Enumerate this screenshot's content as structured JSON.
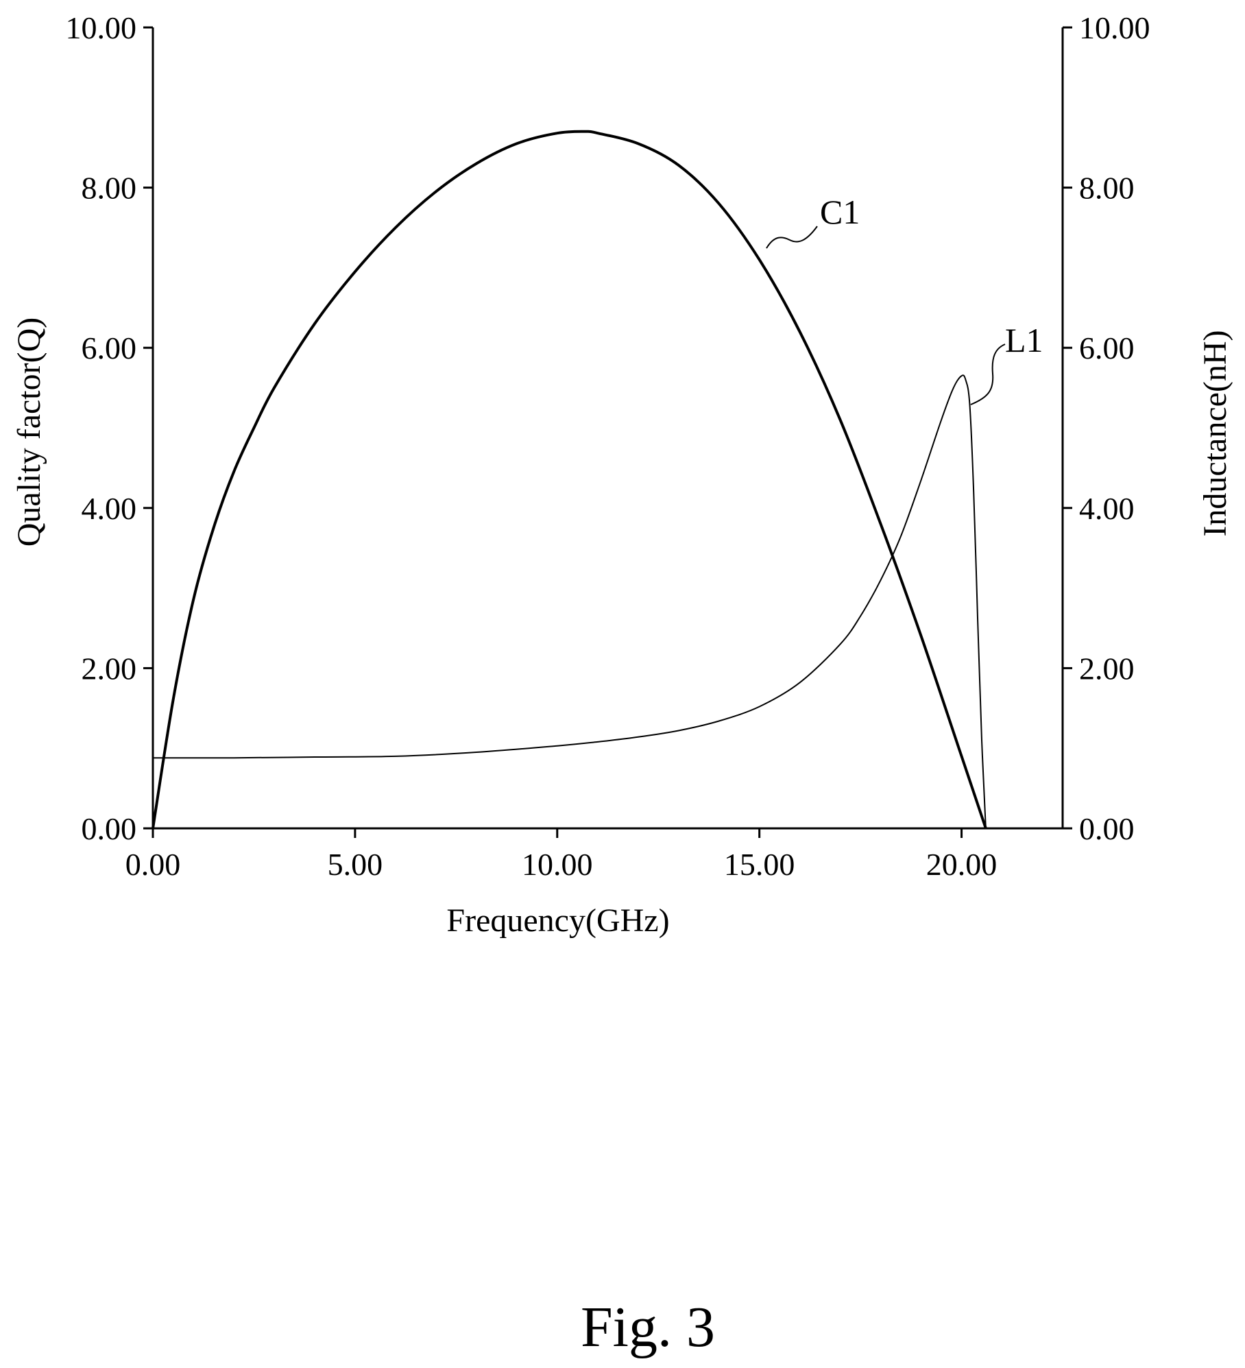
{
  "chart_data": {
    "type": "line",
    "xlabel": "Frequency(GHz)",
    "ylabel_left": "Quality factor(Q)",
    "ylabel_right": "Inductance(nH)",
    "xlim": [
      0,
      22.5
    ],
    "ylim_left": [
      0,
      10
    ],
    "ylim_right": [
      0,
      10
    ],
    "x_ticks": [
      "0.00",
      "5.00",
      "10.00",
      "15.00",
      "20.00"
    ],
    "y_ticks_left": [
      "0.00",
      "2.00",
      "4.00",
      "6.00",
      "8.00",
      "10.00"
    ],
    "y_ticks_right": [
      "0.00",
      "2.00",
      "4.00",
      "6.00",
      "8.00",
      "10.00"
    ],
    "grid": false,
    "series": [
      {
        "name": "C1",
        "axis": "left",
        "x": [
          0,
          0.5,
          1,
          1.5,
          2,
          2.5,
          3,
          4,
          5,
          6,
          7,
          8,
          9,
          10,
          10.7,
          11,
          12,
          13,
          14,
          15,
          16,
          17,
          18,
          19,
          20,
          20.6
        ],
        "y": [
          0,
          1.6,
          2.85,
          3.75,
          4.45,
          5.0,
          5.5,
          6.3,
          6.95,
          7.5,
          7.95,
          8.3,
          8.55,
          8.68,
          8.7,
          8.68,
          8.55,
          8.28,
          7.8,
          7.1,
          6.2,
          5.1,
          3.8,
          2.4,
          0.9,
          0
        ]
      },
      {
        "name": "L1",
        "axis": "right",
        "x": [
          0,
          2,
          4,
          6,
          8,
          10,
          11,
          12,
          13,
          14,
          15,
          16,
          17,
          17.5,
          18,
          18.5,
          19,
          19.5,
          19.8,
          20,
          20.1,
          20.2,
          20.3,
          20.4,
          20.5,
          20.6
        ],
        "y": [
          0.88,
          0.88,
          0.89,
          0.9,
          0.95,
          1.03,
          1.08,
          1.14,
          1.22,
          1.34,
          1.52,
          1.82,
          2.3,
          2.65,
          3.1,
          3.65,
          4.35,
          5.1,
          5.5,
          5.65,
          5.6,
          5.3,
          4.2,
          2.6,
          1.1,
          0
        ]
      }
    ],
    "annotations": [
      "C1",
      "L1"
    ]
  },
  "caption": "Fig. 3"
}
